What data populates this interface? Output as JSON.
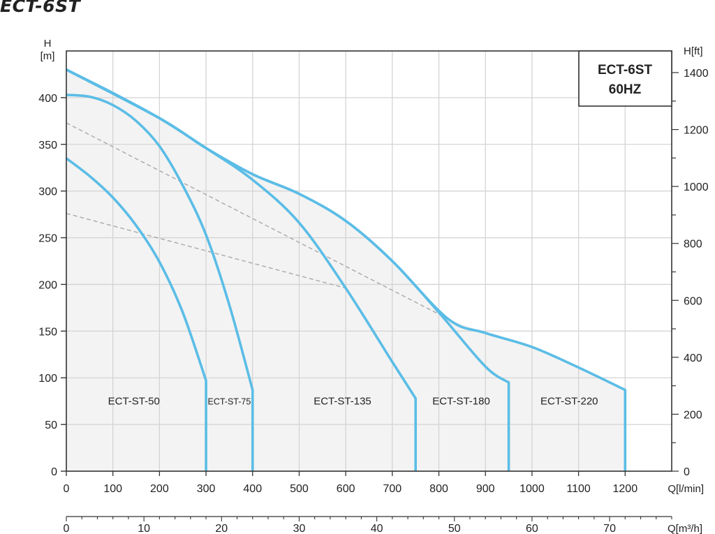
{
  "page_title": "ECT-6ST",
  "chart_data": {
    "type": "line",
    "title": "ECT-6ST",
    "legend_box": {
      "lines": [
        "ECT-6ST",
        "60HZ"
      ],
      "placement": "top-right"
    },
    "x_axis": {
      "unit_label": "Q[l/min]",
      "ticks": [
        0,
        100,
        200,
        300,
        400,
        500,
        600,
        700,
        800,
        900,
        1000,
        1100,
        1200
      ],
      "range": [
        0,
        1300
      ]
    },
    "x2_axis": {
      "unit_label": "Q[m³/h]",
      "ticks": [
        0,
        10,
        20,
        30,
        40,
        50,
        60,
        70
      ],
      "range": [
        0,
        78
      ]
    },
    "y_axis": {
      "label_top": "H",
      "label_unit": "[m]",
      "ticks": [
        0,
        50,
        100,
        150,
        200,
        250,
        300,
        350,
        400
      ],
      "range": [
        0,
        450
      ]
    },
    "y2_axis": {
      "unit_label": "H[ft]",
      "ticks": [
        0,
        200,
        400,
        600,
        800,
        1000,
        1200,
        1400
      ],
      "range": [
        0,
        1476
      ]
    },
    "grid": true,
    "colors": {
      "curve": "#5bbde6",
      "envelope_fill": "#f3f3f3",
      "dashed": "#a8a8a8"
    },
    "series": [
      {
        "name": "ECT-ST-50",
        "label_x": 145,
        "label_y": 75,
        "x": [
          0,
          50,
          100,
          150,
          200,
          250,
          300,
          300
        ],
        "y": [
          335,
          316,
          293,
          263,
          224,
          170,
          97,
          0
        ]
      },
      {
        "name": "ECT-ST-75",
        "label_x": 350,
        "label_y": 75,
        "x": [
          0,
          50,
          100,
          150,
          200,
          250,
          300,
          350,
          400,
          400
        ],
        "y": [
          403,
          401,
          392,
          375,
          348,
          306,
          253,
          178,
          87,
          0
        ]
      },
      {
        "name": "ECT-ST-135",
        "label_x": 593,
        "label_y": 75,
        "x": [
          0,
          100,
          200,
          300,
          400,
          500,
          600,
          700,
          750,
          750
        ],
        "y": [
          430,
          405,
          378,
          346,
          312,
          266,
          196,
          117,
          78,
          0
        ]
      },
      {
        "name": "ECT-ST-180",
        "label_x": 848,
        "label_y": 75,
        "x": [
          0,
          200,
          300,
          400,
          500,
          600,
          700,
          800,
          900,
          950,
          950
        ],
        "y": [
          430,
          378,
          346,
          318,
          297,
          268,
          225,
          170,
          112,
          95,
          0
        ]
      },
      {
        "name": "ECT-ST-220",
        "label_x": 1080,
        "label_y": 75,
        "x": [
          0,
          200,
          300,
          400,
          500,
          600,
          700,
          820,
          900,
          1000,
          1100,
          1200,
          1200
        ],
        "y": [
          430,
          378,
          346,
          318,
          297,
          268,
          225,
          163,
          148,
          133,
          111,
          87,
          0
        ]
      }
    ],
    "reference_lines": [
      {
        "style": "dashed",
        "x": [
          0,
          820
        ],
        "y": [
          373,
          163
        ]
      },
      {
        "style": "dashed",
        "x": [
          0,
          600
        ],
        "y": [
          276,
          196
        ]
      }
    ],
    "envelope": {
      "x": [
        0,
        200,
        300,
        400,
        500,
        600,
        700,
        820,
        900,
        1000,
        1100,
        1200,
        1200,
        0
      ],
      "y": [
        430,
        378,
        346,
        318,
        297,
        268,
        225,
        163,
        148,
        133,
        111,
        87,
        0,
        0
      ]
    }
  }
}
